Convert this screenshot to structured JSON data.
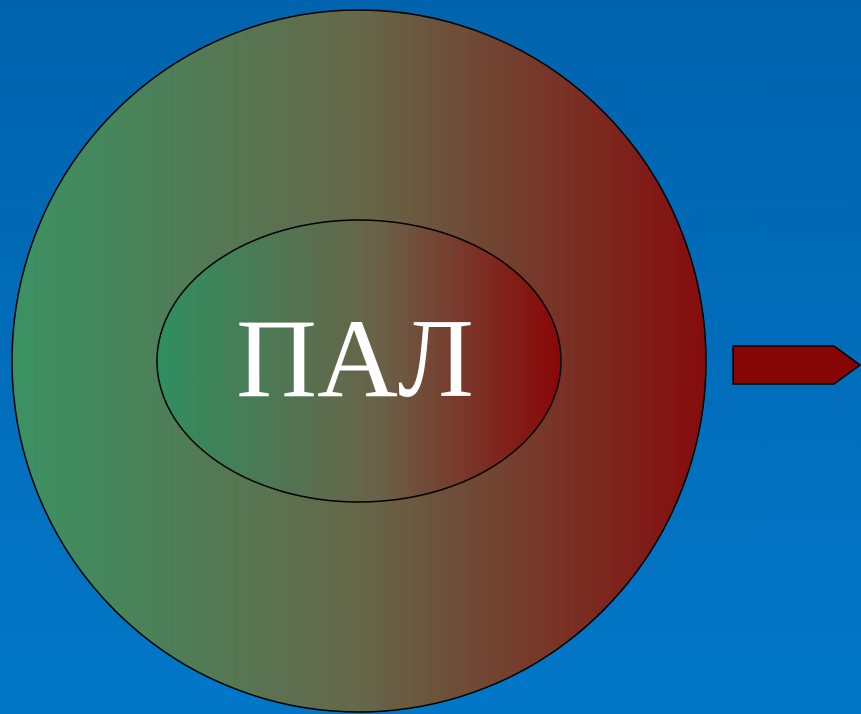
{
  "label": "ПАЛ"
}
